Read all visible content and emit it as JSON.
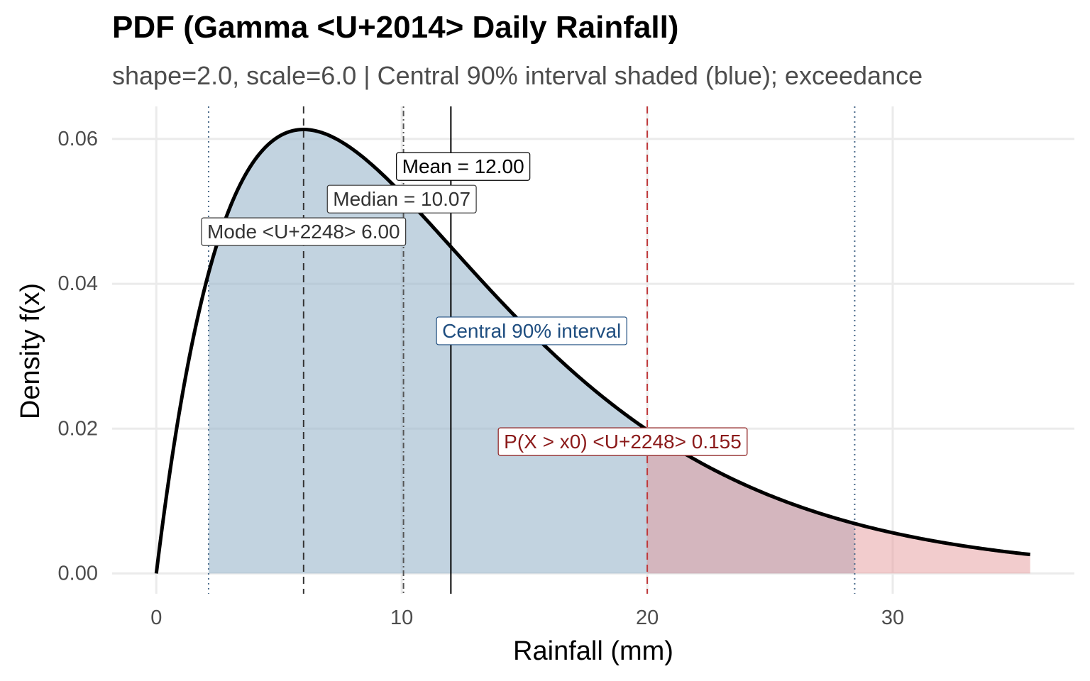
{
  "chart_data": {
    "type": "area",
    "title": "PDF (Gamma <U+2014> Daily Rainfall)",
    "subtitle": "shape=2.0, scale=6.0 | Central 90% interval shaded (blue); exceedance",
    "xlabel": "Rainfall (mm)",
    "ylabel": "Density  f(x)",
    "xlim": [
      -1.8,
      37.4
    ],
    "ylim": [
      -0.0028,
      0.0645
    ],
    "x_ticks": [
      0,
      10,
      20,
      30
    ],
    "x_tick_labels": [
      "0",
      "10",
      "20",
      "30"
    ],
    "y_ticks": [
      0,
      0.02,
      0.04,
      0.06
    ],
    "y_tick_labels": [
      "0.00",
      "0.02",
      "0.04",
      "0.06"
    ],
    "grid": true,
    "distribution": {
      "family": "gamma",
      "shape": 2.0,
      "scale": 6.0,
      "x_min": 0,
      "x_max": 35.6
    },
    "series": [
      {
        "x": [
          0,
          1,
          2,
          3,
          4,
          5,
          6,
          7,
          8,
          9,
          10,
          11,
          12,
          13,
          14,
          15,
          16,
          17,
          18,
          19,
          20,
          21,
          22,
          23,
          24,
          25,
          26,
          27,
          28,
          29,
          30,
          31,
          32,
          33,
          34,
          35,
          35.6
        ],
        "values": [
          0,
          0.0235,
          0.0398,
          0.0505,
          0.057,
          0.0604,
          0.0613,
          0.0605,
          0.0585,
          0.0558,
          0.0525,
          0.049,
          0.0451,
          0.0414,
          0.0378,
          0.0342,
          0.0309,
          0.0277,
          0.0249,
          0.0222,
          0.0198,
          0.0176,
          0.0156,
          0.0138,
          0.0122,
          0.0108,
          0.0095,
          0.0083,
          0.0073,
          0.0064,
          0.0056,
          0.0049,
          0.0043,
          0.0037,
          0.0033,
          0.0028,
          0.0026
        ]
      }
    ],
    "shaded_regions": [
      {
        "name": "central-90",
        "from": 2.13,
        "to": 28.45,
        "color": "#9ab6cb",
        "opacity": 0.6
      },
      {
        "name": "exceedance",
        "from": 20,
        "to": 35.6,
        "color": "#e59a9b",
        "opacity": 0.5
      }
    ],
    "vlines": [
      {
        "name": "central-lower",
        "x": 2.13,
        "style": "dotted",
        "color": "#4a6a8a"
      },
      {
        "name": "mode",
        "x": 6.0,
        "style": "dashed",
        "color": "#333333"
      },
      {
        "name": "median",
        "x": 10.07,
        "style": "dotdash",
        "color": "#555555"
      },
      {
        "name": "mean",
        "x": 12.0,
        "style": "solid",
        "color": "#000000"
      },
      {
        "name": "threshold",
        "x": 20,
        "style": "dashed",
        "color": "#c0393b"
      },
      {
        "name": "central-upper",
        "x": 28.45,
        "style": "dotted",
        "color": "#4a6a8a"
      }
    ],
    "annotations": [
      {
        "name": "mean-label",
        "text": "Mean = 12.00",
        "x": 12.5,
        "y": 0.0562,
        "color": "#000000"
      },
      {
        "name": "median-label",
        "text": "Median = 10.07",
        "x": 10.0,
        "y": 0.0517,
        "color": "#333333"
      },
      {
        "name": "mode-label",
        "text": "Mode <U+2248> 6.00",
        "x": 6.0,
        "y": 0.0472,
        "color": "#333333"
      },
      {
        "name": "interval-label",
        "text": "Central 90% interval",
        "x": 15.29,
        "y": 0.0335,
        "color": "#1f4e80"
      },
      {
        "name": "exceedance-label",
        "text": "P(X > x0) <U+2248> 0.155",
        "x": 19.0,
        "y": 0.0182,
        "color": "#8b1a1a"
      }
    ]
  }
}
